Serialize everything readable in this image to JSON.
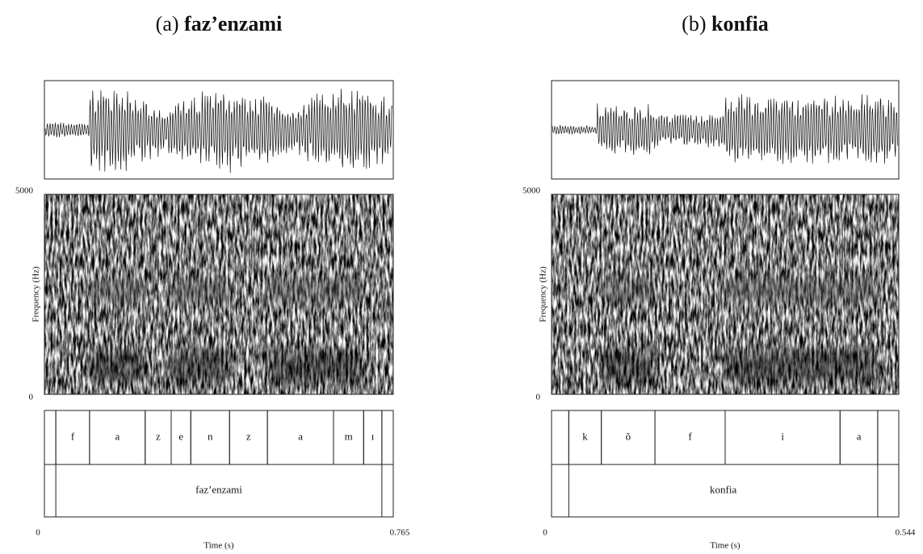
{
  "panels": [
    {
      "label": "(a)",
      "word": "faz’enzami",
      "y_label": "Frequency (Hz)",
      "ylim": [
        0,
        5000
      ],
      "yticks": [
        0,
        5000
      ],
      "x_label": "Time (s)",
      "xlim": [
        0,
        0.765
      ],
      "xticks": [
        0,
        0.765
      ],
      "phones": [
        {
          "label": "f",
          "start": 0.025,
          "end": 0.099
        },
        {
          "label": "a",
          "start": 0.099,
          "end": 0.221
        },
        {
          "label": "z",
          "start": 0.221,
          "end": 0.278
        },
        {
          "label": "e",
          "start": 0.278,
          "end": 0.321
        },
        {
          "label": "n",
          "start": 0.321,
          "end": 0.406
        },
        {
          "label": "z",
          "start": 0.406,
          "end": 0.489
        },
        {
          "label": "a",
          "start": 0.489,
          "end": 0.634
        },
        {
          "label": "m",
          "start": 0.634,
          "end": 0.7
        },
        {
          "label": "ɪ",
          "start": 0.7,
          "end": 0.74
        }
      ],
      "word_tier": {
        "label": "faz’enzami",
        "start": 0.025,
        "end": 0.74
      }
    },
    {
      "label": "(b)",
      "word": "konfia",
      "y_label": "Frequency (Hz)",
      "ylim": [
        0,
        5000
      ],
      "yticks": [
        0,
        5000
      ],
      "x_label": "Time (s)",
      "xlim": [
        0,
        0.544
      ],
      "xticks": [
        0,
        0.544
      ],
      "phones": [
        {
          "label": "k",
          "start": 0.027,
          "end": 0.078
        },
        {
          "label": "õ",
          "start": 0.078,
          "end": 0.162
        },
        {
          "label": "f",
          "start": 0.162,
          "end": 0.272
        },
        {
          "label": "i",
          "start": 0.272,
          "end": 0.452
        },
        {
          "label": "a",
          "start": 0.452,
          "end": 0.511
        }
      ],
      "word_tier": {
        "label": "konfia",
        "start": 0.027,
        "end": 0.511
      }
    }
  ]
}
